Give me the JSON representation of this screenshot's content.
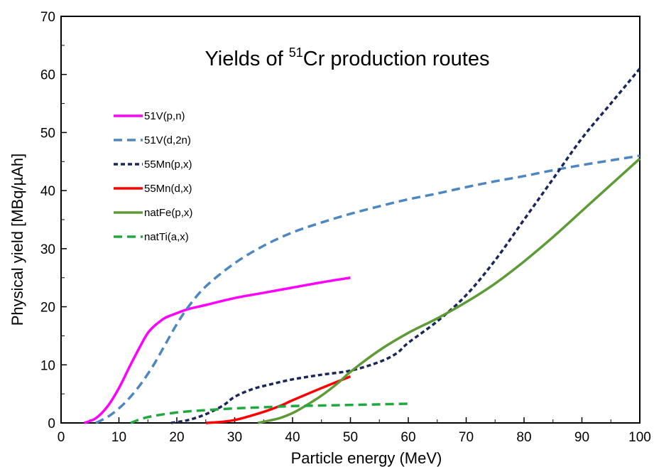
{
  "chart_data": {
    "type": "line",
    "title": {
      "pre": "Yields of ",
      "sup": "51",
      "post": "Cr production routes"
    },
    "xlabel": "Particle energy (MeV)",
    "ylabel": "Physical yield [MBq/µAh]",
    "xlim": [
      0,
      100
    ],
    "ylim": [
      0,
      70
    ],
    "xticks": [
      0,
      10,
      20,
      30,
      40,
      50,
      60,
      70,
      80,
      90,
      100
    ],
    "yticks": [
      0,
      10,
      20,
      30,
      40,
      50,
      60,
      70
    ],
    "grid": false,
    "legend_position": "left",
    "series": [
      {
        "name": "51V(p,n)",
        "color": "#ff00ff",
        "dash": "solid",
        "x": [
          4,
          6,
          8,
          10,
          12,
          14,
          15,
          16,
          17,
          18,
          20,
          22,
          25,
          30,
          35,
          40,
          45,
          50
        ],
        "y": [
          0,
          0.8,
          2.8,
          6,
          10,
          13.8,
          15.5,
          16.6,
          17.4,
          18.1,
          18.9,
          19.6,
          20.3,
          21.5,
          22.4,
          23.3,
          24.2,
          25
        ]
      },
      {
        "name": "51V(d,2n)",
        "color": "#4e86c0",
        "dash": "dashed",
        "x": [
          6,
          8,
          10,
          12,
          14,
          16,
          18,
          20,
          22,
          25,
          30,
          35,
          40,
          45,
          50,
          55,
          60,
          65,
          70,
          75,
          80,
          85,
          90,
          95,
          100
        ],
        "y": [
          0,
          1,
          2.5,
          4.5,
          7,
          10,
          13.5,
          17,
          20,
          23.5,
          27.5,
          30.5,
          32.8,
          34.5,
          36,
          37.3,
          38.5,
          39.5,
          40.6,
          41.6,
          42.5,
          43.5,
          44.4,
          45.2,
          46
        ]
      },
      {
        "name": "55Mn(p,x)",
        "color": "#1a2758",
        "dash": "dotted",
        "x": [
          19,
          22,
          25,
          28,
          30,
          33,
          36,
          40,
          45,
          50,
          55,
          58,
          60,
          65,
          70,
          75,
          80,
          85,
          90,
          95,
          100
        ],
        "y": [
          0,
          0.5,
          1.5,
          3,
          4.5,
          5.8,
          6.6,
          7.5,
          8.3,
          9,
          10.5,
          12,
          13.8,
          17.5,
          22,
          28,
          35,
          42,
          49,
          55,
          61
        ]
      },
      {
        "name": "55Mn(d,x)",
        "color": "#ff0000",
        "dash": "solid",
        "x": [
          25,
          28,
          30,
          32,
          35,
          38,
          40,
          45,
          50
        ],
        "y": [
          0,
          0.2,
          0.5,
          1,
          1.9,
          3,
          3.9,
          6,
          8
        ]
      },
      {
        "name": "natFe(p,x)",
        "color": "#5e9a35",
        "dash": "solid",
        "x": [
          34,
          36,
          38,
          40,
          42,
          45,
          48,
          50,
          55,
          60,
          65,
          70,
          75,
          80,
          85,
          90,
          95,
          100
        ],
        "y": [
          0,
          0.4,
          0.9,
          1.7,
          2.8,
          4.7,
          7,
          8.8,
          12.5,
          15.5,
          18,
          20.8,
          24,
          27.8,
          32,
          36.5,
          41,
          45.5
        ]
      },
      {
        "name": "natTi(a,x)",
        "color": "#20a840",
        "dash": "dashed",
        "x": [
          12,
          15,
          20,
          25,
          30,
          35,
          40,
          45,
          50,
          55,
          60
        ],
        "y": [
          0,
          1,
          1.8,
          2.2,
          2.5,
          2.7,
          2.9,
          3,
          3.1,
          3.2,
          3.3
        ]
      }
    ]
  }
}
